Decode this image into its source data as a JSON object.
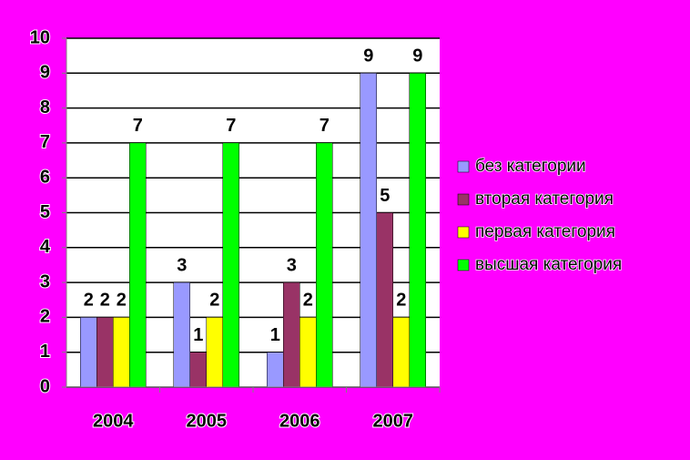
{
  "chart_data": {
    "type": "bar",
    "categories": [
      "2004",
      "2005",
      "2006",
      "2007"
    ],
    "series": [
      {
        "name": "без категории",
        "color": "#9999ff",
        "values": [
          2,
          3,
          1,
          9
        ]
      },
      {
        "name": "вторая категория",
        "color": "#993366",
        "values": [
          2,
          1,
          3,
          5
        ]
      },
      {
        "name": "первая категория",
        "color": "#ffff00",
        "values": [
          2,
          2,
          2,
          2
        ]
      },
      {
        "name": "высшая категория",
        "color": "#00ff00",
        "values": [
          7,
          7,
          7,
          9
        ]
      }
    ],
    "ylim": [
      0,
      10
    ],
    "yticks": [
      0,
      1,
      2,
      3,
      4,
      5,
      6,
      7,
      8,
      9,
      10
    ],
    "grid": true,
    "legend": "right",
    "data_labels": true
  }
}
